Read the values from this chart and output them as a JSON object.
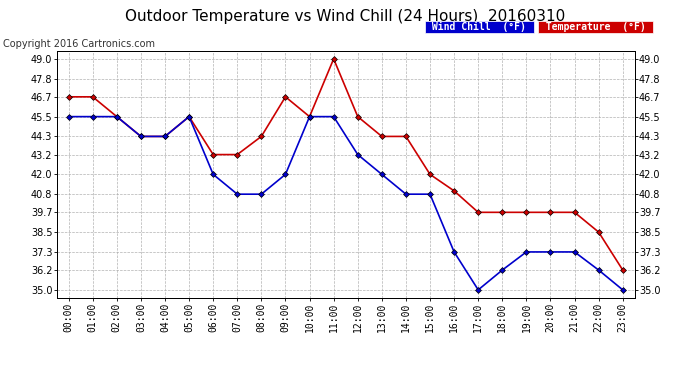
{
  "title": "Outdoor Temperature vs Wind Chill (24 Hours)  20160310",
  "copyright": "Copyright 2016 Cartronics.com",
  "background_color": "#ffffff",
  "plot_background": "#ffffff",
  "grid_color": "#aaaaaa",
  "hours": [
    "00:00",
    "01:00",
    "02:00",
    "03:00",
    "04:00",
    "05:00",
    "06:00",
    "07:00",
    "08:00",
    "09:00",
    "10:00",
    "11:00",
    "12:00",
    "13:00",
    "14:00",
    "15:00",
    "16:00",
    "17:00",
    "18:00",
    "19:00",
    "20:00",
    "21:00",
    "22:00",
    "23:00"
  ],
  "temperature": [
    46.7,
    46.7,
    45.5,
    44.3,
    44.3,
    45.5,
    43.2,
    43.2,
    44.3,
    46.7,
    45.5,
    49.0,
    45.5,
    44.3,
    44.3,
    42.0,
    41.0,
    39.7,
    39.7,
    39.7,
    39.7,
    39.7,
    38.5,
    36.2
  ],
  "wind_chill": [
    45.5,
    45.5,
    45.5,
    44.3,
    44.3,
    45.5,
    42.0,
    40.8,
    40.8,
    42.0,
    45.5,
    45.5,
    43.2,
    42.0,
    40.8,
    40.8,
    37.3,
    35.0,
    36.2,
    37.3,
    37.3,
    37.3,
    36.2,
    35.0
  ],
  "temp_color": "#cc0000",
  "wind_chill_color": "#0000cc",
  "marker_size": 3,
  "line_width": 1.2,
  "ylim_min": 34.5,
  "ylim_max": 49.5,
  "yticks": [
    35.0,
    36.2,
    37.3,
    38.5,
    39.7,
    40.8,
    42.0,
    43.2,
    44.3,
    45.5,
    46.7,
    47.8,
    49.0
  ],
  "legend_wind_chill_bg": "#0000cc",
  "legend_temp_bg": "#cc0000",
  "title_fontsize": 11,
  "axis_fontsize": 7,
  "copyright_fontsize": 7
}
